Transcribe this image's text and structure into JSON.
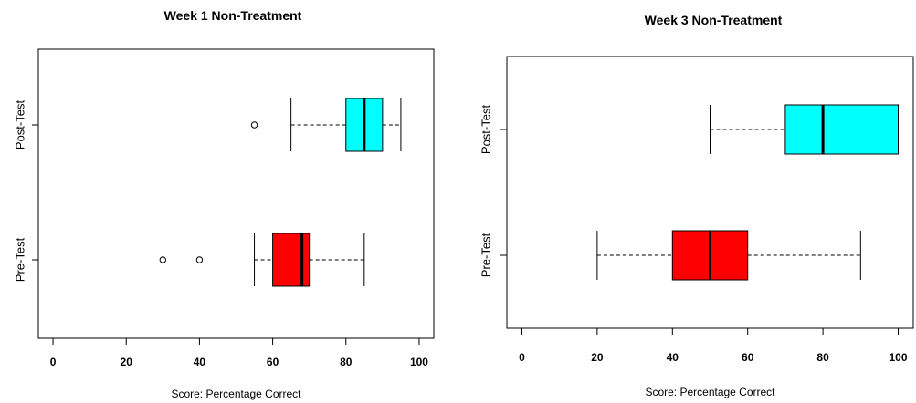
{
  "chart_data": [
    {
      "type": "boxplot",
      "title": "Week 1 Non-Treatment",
      "xlabel": "Score: Percentage Correct",
      "ylabel": "",
      "xlim": [
        -4,
        104
      ],
      "xticks": [
        "0",
        "20",
        "40",
        "60",
        "80",
        "100"
      ],
      "horizontal": true,
      "series": [
        {
          "category": "Pre-Test",
          "whisker_low": 55,
          "q1": 60,
          "median": 68,
          "q3": 70,
          "whisker_high": 85,
          "outliers": [
            30,
            40
          ],
          "color": "#ff0000"
        },
        {
          "category": "Post-Test",
          "whisker_low": 65,
          "q1": 80,
          "median": 85,
          "q3": 90,
          "whisker_high": 95,
          "outliers": [
            55
          ],
          "color": "#00ffff"
        }
      ]
    },
    {
      "type": "boxplot",
      "title": "Week 3 Non-Treatment",
      "xlabel": "Score: Percentage Correct",
      "ylabel": "",
      "xlim": [
        -4,
        104
      ],
      "xticks": [
        "0",
        "20",
        "40",
        "60",
        "80",
        "100"
      ],
      "horizontal": true,
      "series": [
        {
          "category": "Pre-Test",
          "whisker_low": 20,
          "q1": 40,
          "median": 50,
          "q3": 60,
          "whisker_high": 90,
          "outliers": [],
          "color": "#ff0000"
        },
        {
          "category": "Post-Test",
          "whisker_low": 50,
          "q1": 70,
          "median": 80,
          "q3": 100,
          "whisker_high": 100,
          "outliers": [],
          "color": "#00ffff"
        }
      ]
    }
  ]
}
